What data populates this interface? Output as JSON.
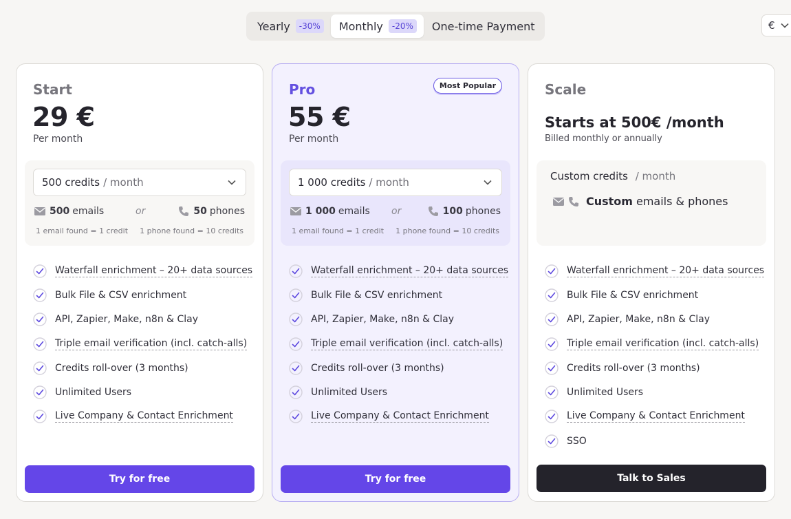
{
  "billing": {
    "options": [
      {
        "label": "Yearly",
        "badge": "-30%"
      },
      {
        "label": "Monthly",
        "badge": "-20%"
      },
      {
        "label": "One-time Payment"
      }
    ],
    "active": "Monthly"
  },
  "currency": {
    "value": "€"
  },
  "colors": {
    "accent": "#6446e8",
    "pro_bg": "#f3f1fe",
    "dark_button": "#24232b"
  },
  "plans": [
    {
      "name": "Start",
      "price": "29 €",
      "period": "Per month",
      "credits": {
        "amount": "500 credits",
        "unit": "/ month",
        "emails": "500",
        "emails_label": "emails",
        "or": "or",
        "phones": "50",
        "phones_label": "phones",
        "email_note": "1 email found = 1 credit",
        "phone_note": "1 phone found = 10 credits"
      },
      "features": [
        "Waterfall enrichment  – 20+ data sources",
        "Bulk File & CSV enrichment",
        "API, Zapier, Make, n8n & Clay",
        "Triple email verification (incl. catch-alls)",
        "Credits roll-over (3 months)",
        "Unlimited Users",
        "Live Company & Contact Enrichment"
      ],
      "cta": "Try for free"
    },
    {
      "name": "Pro",
      "badge": "Most Popular",
      "price": "55 €",
      "period": "Per month",
      "credits": {
        "amount": "1 000 credits",
        "unit": "/ month",
        "emails": "1 000",
        "emails_label": "emails",
        "or": "or",
        "phones": "100",
        "phones_label": "phones",
        "email_note": "1 email found = 1 credit",
        "phone_note": "1 phone found = 10 credits"
      },
      "features": [
        "Waterfall enrichment  – 20+ data sources",
        "Bulk File & CSV enrichment",
        "API, Zapier, Make, n8n & Clay",
        "Triple email verification (incl. catch-alls)",
        "Credits roll-over (3 months)",
        "Unlimited Users",
        "Live Company & Contact Enrichment"
      ],
      "cta": "Try for free"
    },
    {
      "name": "Scale",
      "headline": "Starts at 500€ /month",
      "subline": "Billed monthly or annually",
      "credits": {
        "amount": "Custom credits",
        "unit": "/ month",
        "custom_bold": "Custom",
        "custom_label": "emails & phones"
      },
      "features": [
        "Waterfall enrichment  – 20+ data sources",
        "Bulk File & CSV enrichment",
        "API, Zapier, Make, n8n & Clay",
        "Triple email verification (incl. catch-alls)",
        "Credits roll-over (3 months)",
        "Unlimited Users",
        "Live Company & Contact Enrichment",
        "SSO"
      ],
      "cta": "Talk to Sales"
    }
  ]
}
